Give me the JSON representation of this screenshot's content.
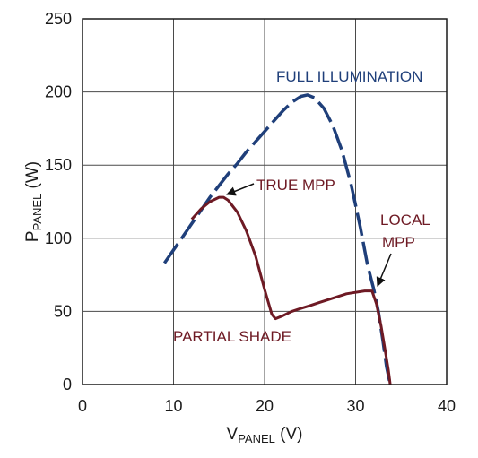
{
  "chart_data": {
    "type": "line",
    "xlabel": {
      "main": "V",
      "sub": "PANEL",
      "unit": " (V)"
    },
    "ylabel": {
      "main": "P",
      "sub": "PANEL",
      "unit": " (W)"
    },
    "xlim": [
      0,
      40
    ],
    "ylim": [
      0,
      250
    ],
    "xticks": [
      "0",
      "10",
      "20",
      "30",
      "40"
    ],
    "yticks": [
      "0",
      "50",
      "100",
      "150",
      "200",
      "250"
    ],
    "grid": true,
    "series": [
      {
        "key": "full",
        "color": "#1f3f7a",
        "style": "dashed",
        "x": [
          9,
          10,
          11,
          12,
          13,
          14,
          15,
          16,
          17,
          18,
          19,
          20,
          21,
          22,
          23,
          24,
          24.7,
          25.5,
          26.5,
          27.5,
          28.5,
          29.5,
          30.5,
          31.3,
          32,
          32.5,
          33,
          33.4,
          33.8
        ],
        "y": [
          83,
          92,
          101,
          110,
          119,
          128,
          136,
          144,
          151,
          159,
          166,
          173,
          180,
          187,
          193,
          197,
          198,
          196,
          189,
          177,
          160,
          137,
          108,
          82,
          65,
          50,
          30,
          12,
          0
        ]
      },
      {
        "key": "partial",
        "color": "#6e1a24",
        "style": "solid",
        "x": [
          12,
          13,
          14,
          15,
          15.5,
          16,
          17,
          18,
          19,
          20,
          20.8,
          21.2,
          22,
          23,
          24,
          25,
          26,
          27,
          28,
          29,
          30,
          31,
          31.8,
          32.3,
          32.8,
          33.2,
          33.6,
          33.8
        ],
        "y": [
          113,
          120,
          125,
          128,
          128,
          126,
          118,
          105,
          88,
          65,
          48,
          45,
          47,
          50,
          52,
          54,
          56,
          58,
          60,
          62,
          63,
          64,
          64,
          55,
          40,
          25,
          10,
          0
        ]
      }
    ],
    "annotations": [
      {
        "text": "FULL ILLUMINATION",
        "color": "blue"
      },
      {
        "text": "TRUE MPP",
        "color": "red",
        "arrow_to": [
          15.5,
          127
        ]
      },
      {
        "text": "LOCAL",
        "color": "red"
      },
      {
        "text": "MPP",
        "color": "red",
        "arrow_to": [
          32,
          64
        ]
      },
      {
        "text": "PARTIAL SHADE",
        "color": "red"
      }
    ]
  }
}
